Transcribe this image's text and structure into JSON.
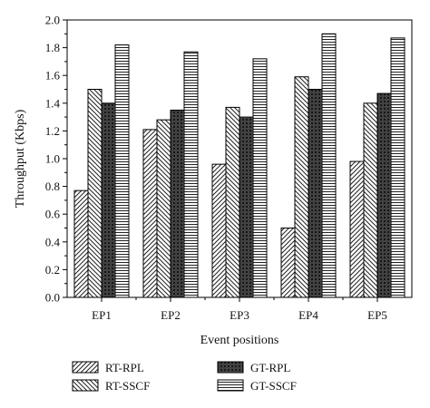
{
  "chart_data": {
    "type": "bar",
    "title": "",
    "xlabel": "Event positions",
    "ylabel": "Throughput (Kbps)",
    "ylim": [
      0,
      2.0
    ],
    "ytick_step": 0.2,
    "yticks": [
      "0.0",
      "0.2",
      "0.4",
      "0.6",
      "0.8",
      "1.0",
      "1.2",
      "1.4",
      "1.6",
      "1.8",
      "2.0"
    ],
    "categories": [
      "EP1",
      "EP2",
      "EP3",
      "EP4",
      "EP5"
    ],
    "series": [
      {
        "name": "RT-RPL",
        "pattern": "diag-forward",
        "values": [
          0.77,
          1.21,
          0.96,
          0.5,
          0.98
        ]
      },
      {
        "name": "RT-SSCF",
        "pattern": "diag-backward",
        "values": [
          1.5,
          1.28,
          1.37,
          1.59,
          1.4
        ]
      },
      {
        "name": "GT-RPL",
        "pattern": "crosshatch-dark",
        "values": [
          1.4,
          1.35,
          1.3,
          1.5,
          1.47
        ]
      },
      {
        "name": "GT-SSCF",
        "pattern": "horizontal",
        "values": [
          1.82,
          1.77,
          1.72,
          1.9,
          1.87
        ]
      }
    ],
    "grid": false,
    "legend_position": "bottom"
  }
}
